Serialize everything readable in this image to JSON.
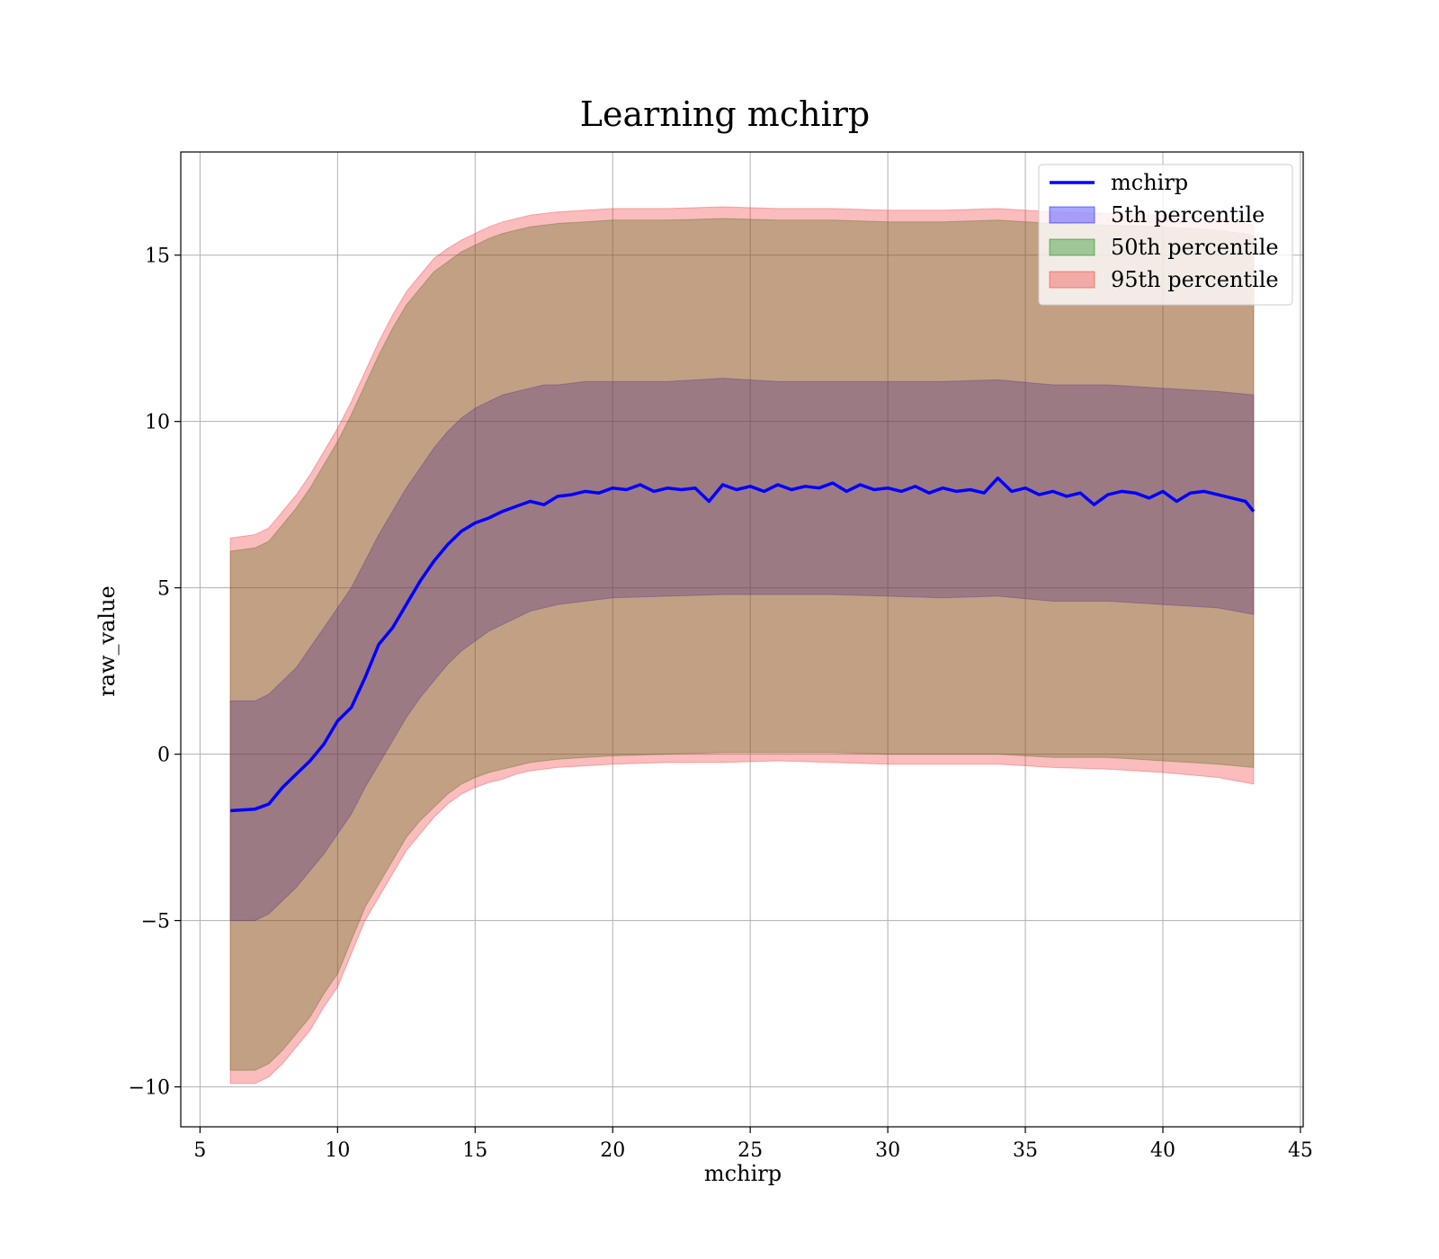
{
  "chart_data": {
    "type": "area",
    "title": "Learning mchirp",
    "xlabel": "mchirp",
    "ylabel": "raw_value",
    "xlim": [
      4.3,
      45.1
    ],
    "ylim": [
      -11.2,
      18.1
    ],
    "xticks": [
      5,
      10,
      15,
      20,
      25,
      30,
      35,
      40,
      45
    ],
    "yticks": [
      -10,
      -5,
      0,
      5,
      10,
      15
    ],
    "ytick_labels": [
      "−10",
      "−5",
      "0",
      "5",
      "10",
      "15"
    ],
    "grid": true,
    "legend": {
      "position": "top-right",
      "entries": [
        "mchirp",
        "5th percentile",
        "50th percentile",
        "95th percentile"
      ]
    },
    "series": [
      {
        "name": "mchirp",
        "kind": "line",
        "color": "#0000ff",
        "x": [
          6.1,
          7.0,
          7.5,
          8.0,
          8.5,
          9.0,
          9.5,
          10.0,
          10.5,
          11.0,
          11.5,
          12.0,
          12.5,
          13.0,
          13.5,
          14.0,
          14.5,
          15.0,
          15.5,
          16.0,
          16.5,
          17.0,
          17.5,
          18.0,
          18.5,
          19.0,
          19.5,
          20.0,
          20.5,
          21.0,
          21.5,
          22.0,
          22.5,
          23.0,
          23.5,
          24.0,
          24.5,
          25.0,
          25.5,
          26.0,
          26.5,
          27.0,
          27.5,
          28.0,
          28.5,
          29.0,
          29.5,
          30.0,
          30.5,
          31.0,
          31.5,
          32.0,
          32.5,
          33.0,
          33.5,
          34.0,
          34.5,
          35.0,
          35.5,
          36.0,
          36.5,
          37.0,
          37.5,
          38.0,
          38.5,
          39.0,
          39.5,
          40.0,
          40.5,
          41.0,
          41.5,
          42.0,
          42.5,
          43.0,
          43.3
        ],
        "y": [
          -1.7,
          -1.65,
          -1.5,
          -1.0,
          -0.6,
          -0.2,
          0.3,
          1.0,
          1.4,
          2.3,
          3.3,
          3.8,
          4.5,
          5.2,
          5.8,
          6.3,
          6.7,
          6.95,
          7.1,
          7.3,
          7.45,
          7.6,
          7.5,
          7.75,
          7.8,
          7.9,
          7.85,
          8.0,
          7.95,
          8.1,
          7.9,
          8.0,
          7.95,
          8.0,
          7.6,
          8.1,
          7.95,
          8.05,
          7.9,
          8.1,
          7.95,
          8.05,
          8.0,
          8.15,
          7.9,
          8.1,
          7.95,
          8.0,
          7.9,
          8.05,
          7.85,
          8.0,
          7.9,
          7.95,
          7.85,
          8.3,
          7.9,
          8.0,
          7.8,
          7.9,
          7.75,
          7.85,
          7.5,
          7.8,
          7.9,
          7.85,
          7.7,
          7.9,
          7.6,
          7.85,
          7.9,
          7.8,
          7.7,
          7.6,
          7.3
        ]
      },
      {
        "name": "5th percentile",
        "kind": "band",
        "color": "#0000ff",
        "x": [
          6.1,
          7.0,
          7.5,
          8.0,
          8.5,
          9.0,
          9.5,
          10.0,
          10.5,
          11.0,
          11.5,
          12.0,
          12.5,
          13.0,
          13.5,
          14.0,
          14.5,
          15.0,
          15.5,
          16.0,
          16.5,
          17.0,
          17.5,
          18.0,
          19.0,
          20.0,
          22.0,
          24.0,
          26.0,
          28.0,
          30.0,
          32.0,
          34.0,
          36.0,
          38.0,
          40.0,
          42.0,
          43.3
        ],
        "lower": [
          -5.0,
          -5.0,
          -4.8,
          -4.4,
          -4.0,
          -3.5,
          -3.0,
          -2.4,
          -1.8,
          -1.0,
          -0.3,
          0.4,
          1.1,
          1.7,
          2.2,
          2.7,
          3.1,
          3.4,
          3.7,
          3.9,
          4.1,
          4.3,
          4.4,
          4.5,
          4.6,
          4.7,
          4.75,
          4.8,
          4.8,
          4.8,
          4.75,
          4.7,
          4.75,
          4.6,
          4.6,
          4.5,
          4.4,
          4.2
        ],
        "upper": [
          1.6,
          1.6,
          1.8,
          2.2,
          2.6,
          3.2,
          3.8,
          4.4,
          5.0,
          5.8,
          6.6,
          7.3,
          8.0,
          8.6,
          9.2,
          9.7,
          10.1,
          10.4,
          10.6,
          10.8,
          10.9,
          11.0,
          11.1,
          11.1,
          11.2,
          11.2,
          11.2,
          11.3,
          11.2,
          11.2,
          11.2,
          11.2,
          11.25,
          11.1,
          11.1,
          11.0,
          10.9,
          10.8
        ]
      },
      {
        "name": "50th percentile",
        "kind": "band",
        "color": "#008000",
        "x": [
          6.1,
          7.0,
          7.5,
          8.0,
          8.5,
          9.0,
          9.5,
          10.0,
          10.5,
          11.0,
          11.5,
          12.0,
          12.5,
          13.0,
          13.5,
          14.0,
          14.5,
          15.0,
          15.5,
          16.0,
          16.5,
          17.0,
          17.5,
          18.0,
          19.0,
          20.0,
          22.0,
          24.0,
          26.0,
          28.0,
          30.0,
          32.0,
          34.0,
          36.0,
          38.0,
          40.0,
          42.0,
          43.3
        ],
        "lower": [
          -9.5,
          -9.5,
          -9.3,
          -8.9,
          -8.4,
          -7.9,
          -7.2,
          -6.6,
          -5.6,
          -4.6,
          -3.9,
          -3.2,
          -2.5,
          -2.0,
          -1.6,
          -1.2,
          -0.9,
          -0.7,
          -0.55,
          -0.45,
          -0.35,
          -0.25,
          -0.2,
          -0.15,
          -0.1,
          -0.05,
          0.0,
          0.05,
          0.05,
          0.05,
          0.0,
          0.0,
          0.0,
          -0.1,
          -0.1,
          -0.2,
          -0.3,
          -0.4
        ],
        "upper": [
          6.1,
          6.2,
          6.4,
          6.9,
          7.4,
          8.0,
          8.7,
          9.4,
          10.2,
          11.1,
          12.0,
          12.8,
          13.5,
          14.0,
          14.5,
          14.8,
          15.1,
          15.3,
          15.5,
          15.65,
          15.75,
          15.85,
          15.9,
          15.95,
          16.0,
          16.05,
          16.05,
          16.1,
          16.05,
          16.05,
          16.0,
          16.0,
          16.05,
          15.95,
          15.9,
          15.85,
          15.75,
          15.6
        ]
      },
      {
        "name": "95th percentile",
        "kind": "band",
        "color": "#f03030",
        "x": [
          6.1,
          7.0,
          7.5,
          8.0,
          8.5,
          9.0,
          9.5,
          10.0,
          10.5,
          11.0,
          11.5,
          12.0,
          12.5,
          13.0,
          13.5,
          14.0,
          14.5,
          15.0,
          15.5,
          16.0,
          16.5,
          17.0,
          17.5,
          18.0,
          19.0,
          20.0,
          22.0,
          24.0,
          26.0,
          28.0,
          30.0,
          32.0,
          34.0,
          36.0,
          38.0,
          40.0,
          42.0,
          43.3
        ],
        "lower": [
          -9.9,
          -9.9,
          -9.7,
          -9.3,
          -8.8,
          -8.3,
          -7.6,
          -7.0,
          -6.0,
          -5.0,
          -4.3,
          -3.6,
          -2.9,
          -2.4,
          -1.9,
          -1.5,
          -1.2,
          -1.0,
          -0.85,
          -0.75,
          -0.6,
          -0.5,
          -0.45,
          -0.4,
          -0.35,
          -0.3,
          -0.25,
          -0.25,
          -0.2,
          -0.25,
          -0.3,
          -0.3,
          -0.3,
          -0.4,
          -0.45,
          -0.55,
          -0.7,
          -0.9
        ],
        "upper": [
          6.5,
          6.6,
          6.8,
          7.3,
          7.8,
          8.4,
          9.1,
          9.8,
          10.6,
          11.5,
          12.4,
          13.2,
          13.9,
          14.4,
          14.9,
          15.2,
          15.45,
          15.65,
          15.85,
          16.0,
          16.1,
          16.2,
          16.25,
          16.3,
          16.35,
          16.4,
          16.4,
          16.45,
          16.4,
          16.4,
          16.35,
          16.35,
          16.4,
          16.3,
          16.25,
          16.2,
          16.1,
          15.9
        ]
      }
    ]
  }
}
